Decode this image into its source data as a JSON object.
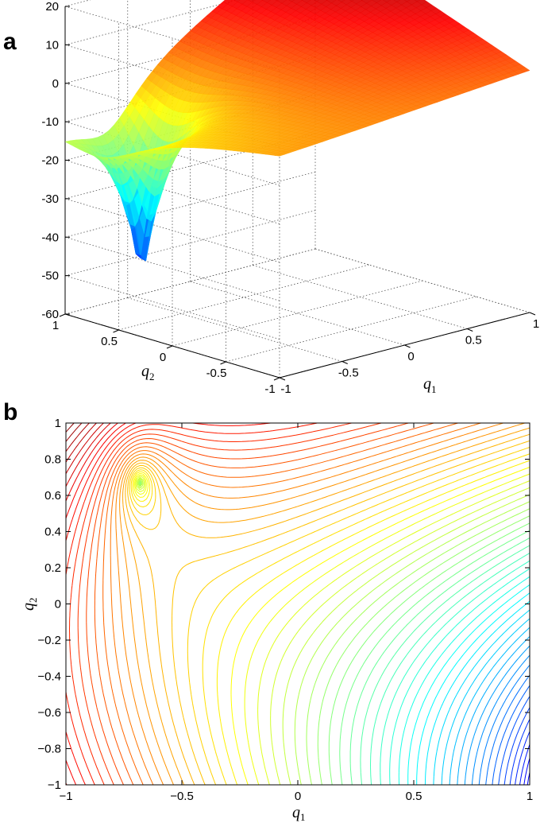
{
  "chart_data": [
    {
      "panel": "a",
      "type": "surface",
      "xlabel": "q",
      "xlabel_sub": "1",
      "ylabel": "q",
      "ylabel_sub": "2",
      "zlabel": "",
      "x_ticks": [
        "-1",
        "-0.5",
        "0",
        "0.5",
        "1"
      ],
      "y_ticks": [
        "-1",
        "-0.5",
        "0",
        "0.5",
        "1"
      ],
      "z_ticks": [
        "-60",
        "-50",
        "-40",
        "-30",
        "-20",
        "-10",
        "0",
        "10",
        "20"
      ],
      "xlim": [
        -1,
        1
      ],
      "ylim": [
        -1,
        1
      ],
      "zlim": [
        -60,
        20
      ],
      "grid": true,
      "colormap": "jet",
      "minimum": {
        "q1": -0.67,
        "q2": 0.67,
        "z": -53
      },
      "corner_values": [
        {
          "q1": -1,
          "q2": 1,
          "z": -10
        },
        {
          "q1": 1,
          "q2": 1,
          "z": 24
        },
        {
          "q1": 1,
          "q2": -1,
          "z": 3
        },
        {
          "q1": -1,
          "q2": -1,
          "z": -2
        }
      ]
    },
    {
      "panel": "b",
      "type": "contour",
      "xlabel": "q",
      "xlabel_sub": "1",
      "ylabel": "q",
      "ylabel_sub": "2",
      "x_ticks": [
        "−1",
        "−0.5",
        "0",
        "0.5",
        "1"
      ],
      "y_ticks": [
        "1",
        "0.8",
        "0.6",
        "0.4",
        "0.2",
        "0",
        "−0.2",
        "−0.4",
        "−0.6",
        "−0.8",
        "−1"
      ],
      "xlim": [
        -1,
        1
      ],
      "ylim": [
        -1,
        1
      ],
      "grid": false,
      "colormap": "jet",
      "minimum": {
        "q1": -0.68,
        "q2": 0.67
      }
    }
  ]
}
